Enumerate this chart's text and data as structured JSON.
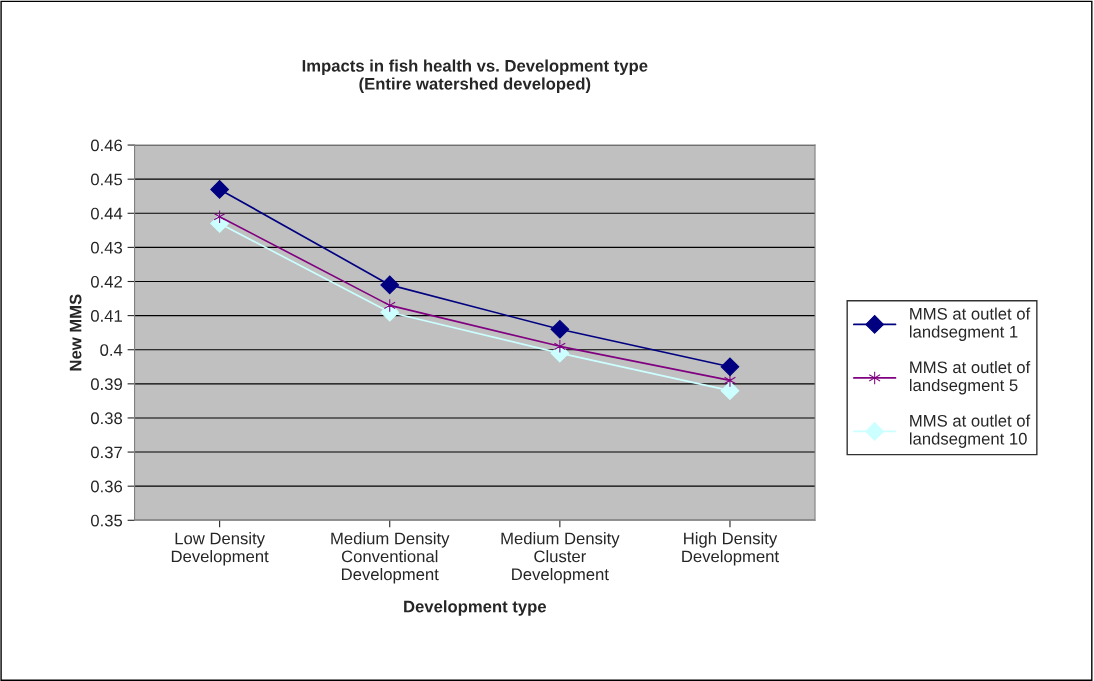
{
  "chart_data": {
    "type": "line",
    "title": "Impacts in fish health vs. Development type\n(Entire watershed developed)",
    "xlabel": "Development type",
    "ylabel": "New MMS",
    "categories": [
      "Low Density\nDevelopment",
      "Medium Density\nConventional\nDevelopment",
      "Medium Density\nCluster\nDevelopment",
      "High Density\nDevelopment"
    ],
    "series": [
      {
        "name": "MMS at outlet of\nlandsegment 1",
        "color": "#000080",
        "marker": "diamond",
        "values": [
          0.447,
          0.419,
          0.406,
          0.395
        ]
      },
      {
        "name": "MMS at outlet of\nlandsegment 5",
        "color": "#800080",
        "marker": "cross",
        "values": [
          0.439,
          0.413,
          0.401,
          0.391
        ]
      },
      {
        "name": "MMS at outlet of\nlandsegment 10",
        "color": "#ccffff",
        "marker": "diamond",
        "values": [
          0.437,
          0.411,
          0.399,
          0.388
        ]
      }
    ],
    "ylim": [
      0.35,
      0.46
    ],
    "yticks": [
      0.35,
      0.36,
      0.37,
      0.38,
      0.39,
      0.4,
      0.41,
      0.42,
      0.43,
      0.44,
      0.45,
      0.46
    ],
    "grid": "y",
    "legend": "right"
  }
}
